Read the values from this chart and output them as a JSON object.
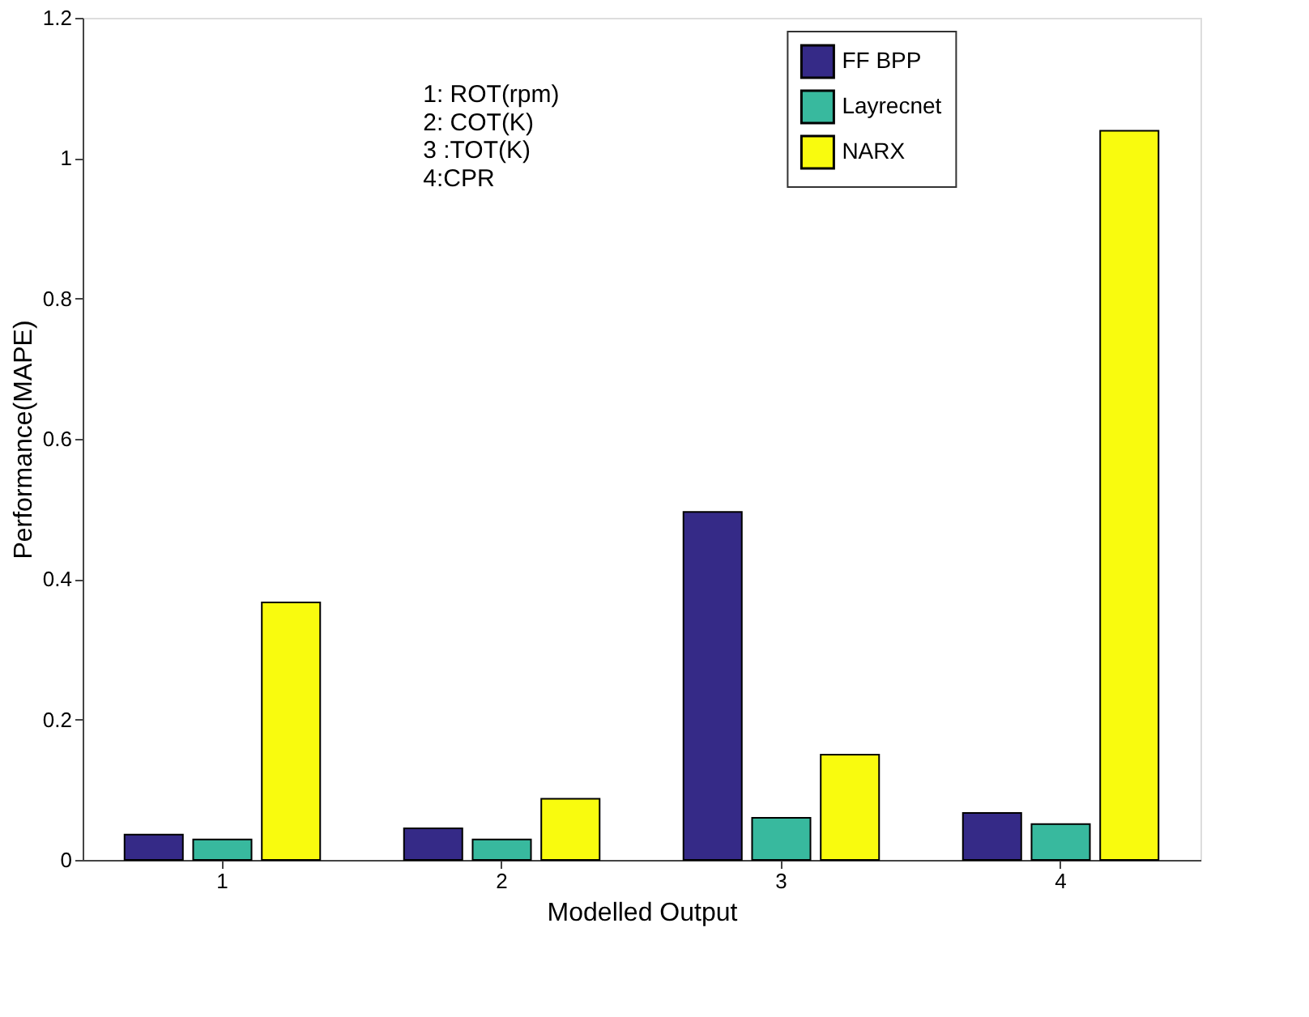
{
  "chart_data": {
    "type": "bar",
    "xlabel": "Modelled Output",
    "ylabel": "Performance(MAPE)",
    "categories": [
      "1",
      "2",
      "3",
      "4"
    ],
    "series": [
      {
        "name": "FF BPP",
        "color": "#352a87",
        "values": [
          0.036,
          0.045,
          0.496,
          0.067
        ]
      },
      {
        "name": "Layrecnet",
        "color": "#38b99e",
        "values": [
          0.029,
          0.029,
          0.06,
          0.051
        ]
      },
      {
        "name": "NARX",
        "color": "#f9fb0e",
        "values": [
          0.367,
          0.087,
          0.15,
          1.039
        ]
      }
    ],
    "ylim": [
      0,
      1.2
    ],
    "yticks": [
      0,
      0.2,
      0.4,
      0.6,
      0.8,
      1,
      1.2
    ],
    "annotations": [
      "1: ROT(rpm)",
      "2: COT(K)",
      "3 :TOT(K)",
      "4:CPR"
    ],
    "grid": false,
    "legend": "top right"
  }
}
